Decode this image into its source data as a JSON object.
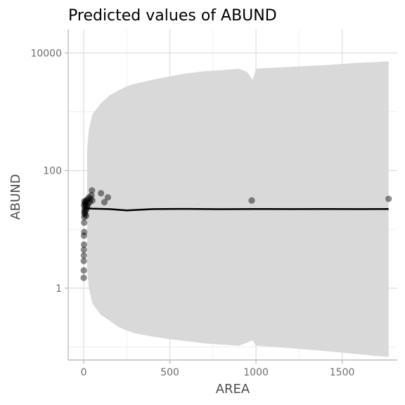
{
  "chart_data": {
    "type": "scatter",
    "title": "Predicted values of ABUND",
    "xlabel": "AREA",
    "ylabel": "ABUND",
    "xlim": [
      -90,
      1820
    ],
    "ylim": [
      0.06,
      25000
    ],
    "y_scale": "log10",
    "grid": true,
    "x_ticks": [
      0,
      500,
      1000,
      1500
    ],
    "x_tick_labels": [
      "0",
      "500",
      "1000",
      "1500"
    ],
    "y_ticks": [
      1,
      100,
      10000
    ],
    "y_tick_labels": [
      "1",
      "100",
      "10000"
    ],
    "points": [
      {
        "x": 0.1,
        "y": 1.5
      },
      {
        "x": 0.5,
        "y": 2.0
      },
      {
        "x": 0.7,
        "y": 2.9
      },
      {
        "x": 1,
        "y": 3.6
      },
      {
        "x": 1.2,
        "y": 4.5
      },
      {
        "x": 2,
        "y": 5.5
      },
      {
        "x": 1.5,
        "y": 7.8
      },
      {
        "x": 3,
        "y": 9.0
      },
      {
        "x": 2.5,
        "y": 13
      },
      {
        "x": 4,
        "y": 16
      },
      {
        "x": 5,
        "y": 18
      },
      {
        "x": 3.5,
        "y": 20
      },
      {
        "x": 6,
        "y": 22
      },
      {
        "x": 7,
        "y": 24
      },
      {
        "x": 2,
        "y": 26
      },
      {
        "x": 8,
        "y": 19
      },
      {
        "x": 9,
        "y": 27
      },
      {
        "x": 10,
        "y": 28
      },
      {
        "x": 4,
        "y": 30
      },
      {
        "x": 12,
        "y": 21
      },
      {
        "x": 14,
        "y": 17
      },
      {
        "x": 11,
        "y": 29
      },
      {
        "x": 15,
        "y": 31
      },
      {
        "x": 18,
        "y": 25
      },
      {
        "x": 20,
        "y": 23
      },
      {
        "x": 22,
        "y": 32
      },
      {
        "x": 25,
        "y": 27
      },
      {
        "x": 30,
        "y": 35
      },
      {
        "x": 35,
        "y": 29
      },
      {
        "x": 40,
        "y": 33
      },
      {
        "x": 45,
        "y": 38
      },
      {
        "x": 50,
        "y": 31
      },
      {
        "x": 48,
        "y": 46
      },
      {
        "x": 100,
        "y": 41
      },
      {
        "x": 120,
        "y": 29
      },
      {
        "x": 140,
        "y": 35
      },
      {
        "x": 975,
        "y": 31
      },
      {
        "x": 1770,
        "y": 33
      }
    ],
    "fit_line": {
      "x": [
        0,
        50,
        150,
        250,
        400,
        600,
        800,
        1000,
        1200,
        1400,
        1600,
        1770
      ],
      "y": [
        23,
        22.5,
        22.1,
        21,
        22.1,
        22.3,
        22,
        22.2,
        22.1,
        22.2,
        22.1,
        22.2
      ]
    },
    "confidence_band": {
      "x": [
        20,
        30,
        50,
        100,
        150,
        200,
        250,
        300,
        400,
        500,
        600,
        700,
        800,
        900,
        950,
        980,
        1000,
        1100,
        1200,
        1300,
        1400,
        1500,
        1600,
        1700,
        1770
      ],
      "upper": [
        240,
        500,
        900,
        1400,
        1900,
        2300,
        2700,
        3000,
        3500,
        4000,
        4500,
        4900,
        5100,
        5400,
        4700,
        3500,
        5400,
        5600,
        5800,
        6000,
        6200,
        6500,
        6800,
        7000,
        7200
      ],
      "lower": [
        2.0,
        1.0,
        0.55,
        0.35,
        0.28,
        0.22,
        0.19,
        0.17,
        0.15,
        0.135,
        0.125,
        0.115,
        0.11,
        0.105,
        0.118,
        0.13,
        0.105,
        0.1,
        0.095,
        0.09,
        0.085,
        0.08,
        0.075,
        0.07,
        0.068
      ]
    },
    "colors": {
      "points": "#000000",
      "line": "#000000",
      "band": "#d9d9d9"
    }
  }
}
